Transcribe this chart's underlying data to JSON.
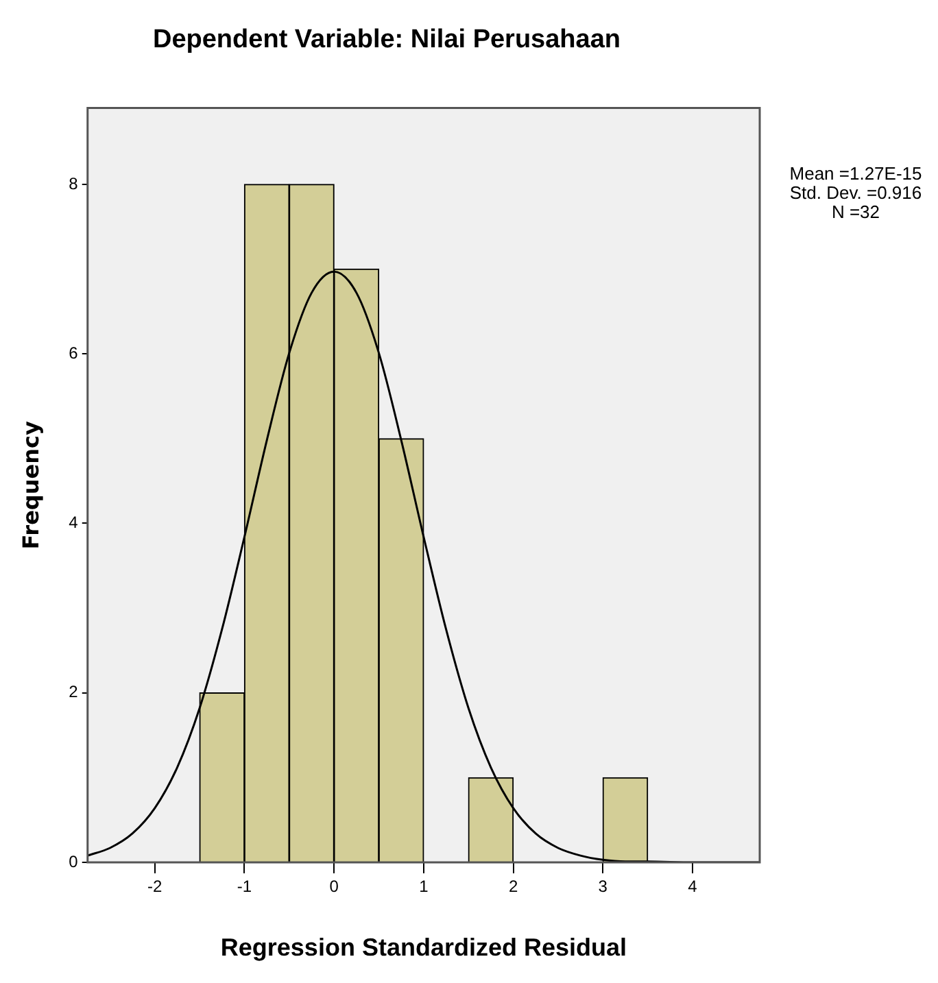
{
  "chart_data": {
    "type": "histogram",
    "title": "Dependent Variable: Nilai Perusahaan",
    "xlabel": "Regression Standardized Residual",
    "ylabel": "Frequency",
    "bins": [
      -1.5,
      -1,
      -0.5,
      0,
      0.5,
      1,
      1.5,
      2,
      2.5,
      3,
      3.5
    ],
    "values": [
      2,
      8,
      8,
      7,
      5,
      0,
      1,
      0,
      0,
      1
    ],
    "color": "#d3ce97",
    "series": [
      {
        "type": "line",
        "color": "#000000",
        "x": [
          -2.75,
          -2.5,
          -2.25,
          -2,
          -1.75,
          -1.5,
          -1.25,
          -1,
          -0.75,
          -0.5,
          -0.25,
          0,
          0.25,
          0.5,
          0.75,
          1,
          1.25,
          1.5,
          1.75,
          2,
          2.25,
          2.5,
          2.75,
          3,
          3.25,
          3.5,
          4,
          4.75
        ],
        "values": [
          0.08,
          0.17,
          0.34,
          0.64,
          1.12,
          1.82,
          2.75,
          3.84,
          4.98,
          6.01,
          6.72,
          6.97,
          6.72,
          6.01,
          4.98,
          3.84,
          2.75,
          1.82,
          1.12,
          0.64,
          0.34,
          0.17,
          0.08,
          0.03,
          0.01,
          0.01,
          0,
          0
        ]
      }
    ],
    "marker": "none",
    "xlim": [
      -2.75,
      4.75
    ],
    "xticks": [
      -2,
      -1,
      0,
      1,
      2,
      3,
      4
    ],
    "ylim": [
      0,
      8.9
    ],
    "yticks": [
      0,
      2,
      4,
      6,
      8
    ],
    "grid": false,
    "annotations": [
      "Mean =1.27E-15\nStd. Dev. =0.916\nN =32"
    ]
  }
}
